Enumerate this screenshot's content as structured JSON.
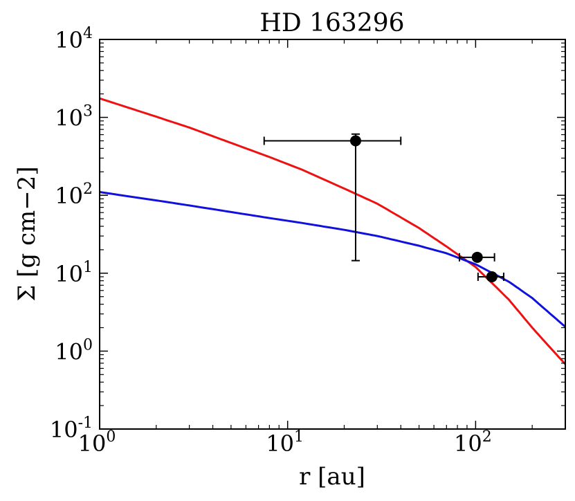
{
  "chart_data": {
    "type": "line",
    "title": "HD 163296",
    "xlabel": "r [au]",
    "ylabel": "Σ [g cm−2]",
    "x_scale": "log",
    "y_scale": "log",
    "xlim": [
      1,
      300
    ],
    "ylim": [
      0.1,
      10000
    ],
    "grid": false,
    "x_ticks": [
      {
        "value": 1,
        "base": "10",
        "exp": "0"
      },
      {
        "value": 10,
        "base": "10",
        "exp": "1"
      },
      {
        "value": 100,
        "base": "10",
        "exp": "2"
      }
    ],
    "y_ticks": [
      {
        "value": 0.1,
        "base": "10",
        "exp": "-1"
      },
      {
        "value": 1,
        "base": "10",
        "exp": "0"
      },
      {
        "value": 10,
        "base": "10",
        "exp": "1"
      },
      {
        "value": 100,
        "base": "10",
        "exp": "2"
      },
      {
        "value": 1000,
        "base": "10",
        "exp": "3"
      },
      {
        "value": 10000,
        "base": "10",
        "exp": "4"
      }
    ],
    "series": [
      {
        "color": "#ee1111",
        "x": [
          1,
          2,
          3,
          5,
          8,
          12,
          20,
          30,
          50,
          70,
          100,
          150,
          200,
          250,
          300
        ],
        "y": [
          1750,
          1020,
          740,
          470,
          310,
          212,
          122,
          78,
          38,
          22,
          12,
          4.6,
          2.0,
          1.1,
          0.68
        ]
      },
      {
        "color": "#1111dd",
        "x": [
          1,
          2,
          3,
          5,
          8,
          12,
          20,
          30,
          50,
          70,
          100,
          150,
          200,
          250,
          300
        ],
        "y": [
          110,
          86,
          74,
          61,
          51,
          44,
          36,
          30,
          22.5,
          18,
          13,
          7.8,
          4.8,
          3.0,
          2.05
        ]
      }
    ],
    "points": [
      {
        "x": 23,
        "y": 500,
        "xerr": [
          7.5,
          40
        ],
        "yerr": [
          14.5,
          610
        ],
        "color": "#000000"
      },
      {
        "x": 102,
        "y": 16,
        "xerr": [
          82,
          126
        ],
        "yerr": [
          16,
          16
        ],
        "color": "#000000"
      },
      {
        "x": 122,
        "y": 9,
        "xerr": [
          103,
          141
        ],
        "yerr": [
          9,
          9
        ],
        "color": "#000000"
      }
    ]
  }
}
